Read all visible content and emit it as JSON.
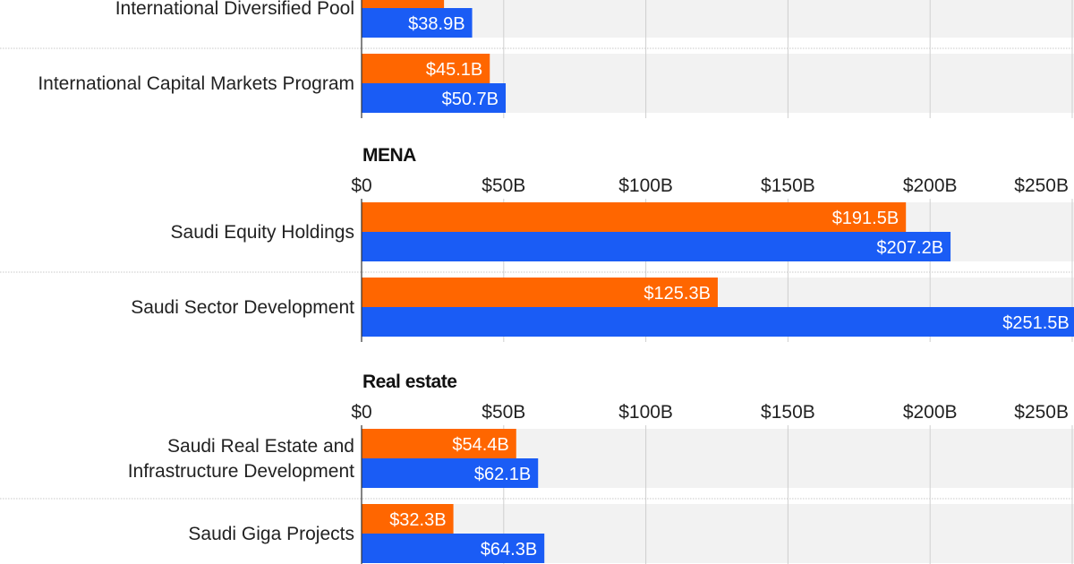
{
  "colors": {
    "orange": "#ff6600",
    "blue": "#1a5cf5",
    "track": "#f2f2f2",
    "grid": "#cfcfcf",
    "separator": "#c8c8c8",
    "axis": "#333333"
  },
  "chart_data": {
    "type": "bar",
    "orientation": "horizontal",
    "xlim": [
      0,
      250
    ],
    "ticks": [
      "$0",
      "$50B",
      "$100B",
      "$150B",
      "$200B",
      "$250B"
    ],
    "tick_values": [
      0,
      50,
      100,
      150,
      200,
      250
    ],
    "groups": [
      {
        "title": "",
        "show_axis": false,
        "categories": [
          "International Diversified Pool",
          "International Capital Markets Program"
        ],
        "series": [
          {
            "color_key": "orange",
            "values": [
              29,
              45.1
            ],
            "labels": [
              "",
              "$45.1B"
            ]
          },
          {
            "color_key": "blue",
            "values": [
              38.9,
              50.7
            ],
            "labels": [
              "$38.9B",
              "$50.7B"
            ]
          }
        ]
      },
      {
        "title": "MENA",
        "show_axis": true,
        "categories": [
          "Saudi Equity Holdings",
          "Saudi Sector Development"
        ],
        "series": [
          {
            "color_key": "orange",
            "values": [
              191.5,
              125.3
            ],
            "labels": [
              "$191.5B",
              "$125.3B"
            ]
          },
          {
            "color_key": "blue",
            "values": [
              207.2,
              251.5
            ],
            "labels": [
              "$207.2B",
              "$251.5B"
            ]
          }
        ]
      },
      {
        "title": "Real estate",
        "show_axis": true,
        "categories": [
          "Saudi Real Estate and Infrastructure Development",
          "Saudi Giga Projects"
        ],
        "series": [
          {
            "color_key": "orange",
            "values": [
              54.4,
              32.3
            ],
            "labels": [
              "$54.4B",
              "$32.3B"
            ]
          },
          {
            "color_key": "blue",
            "values": [
              62.1,
              64.3
            ],
            "labels": [
              "$62.1B",
              "$64.3B"
            ]
          }
        ]
      }
    ]
  }
}
